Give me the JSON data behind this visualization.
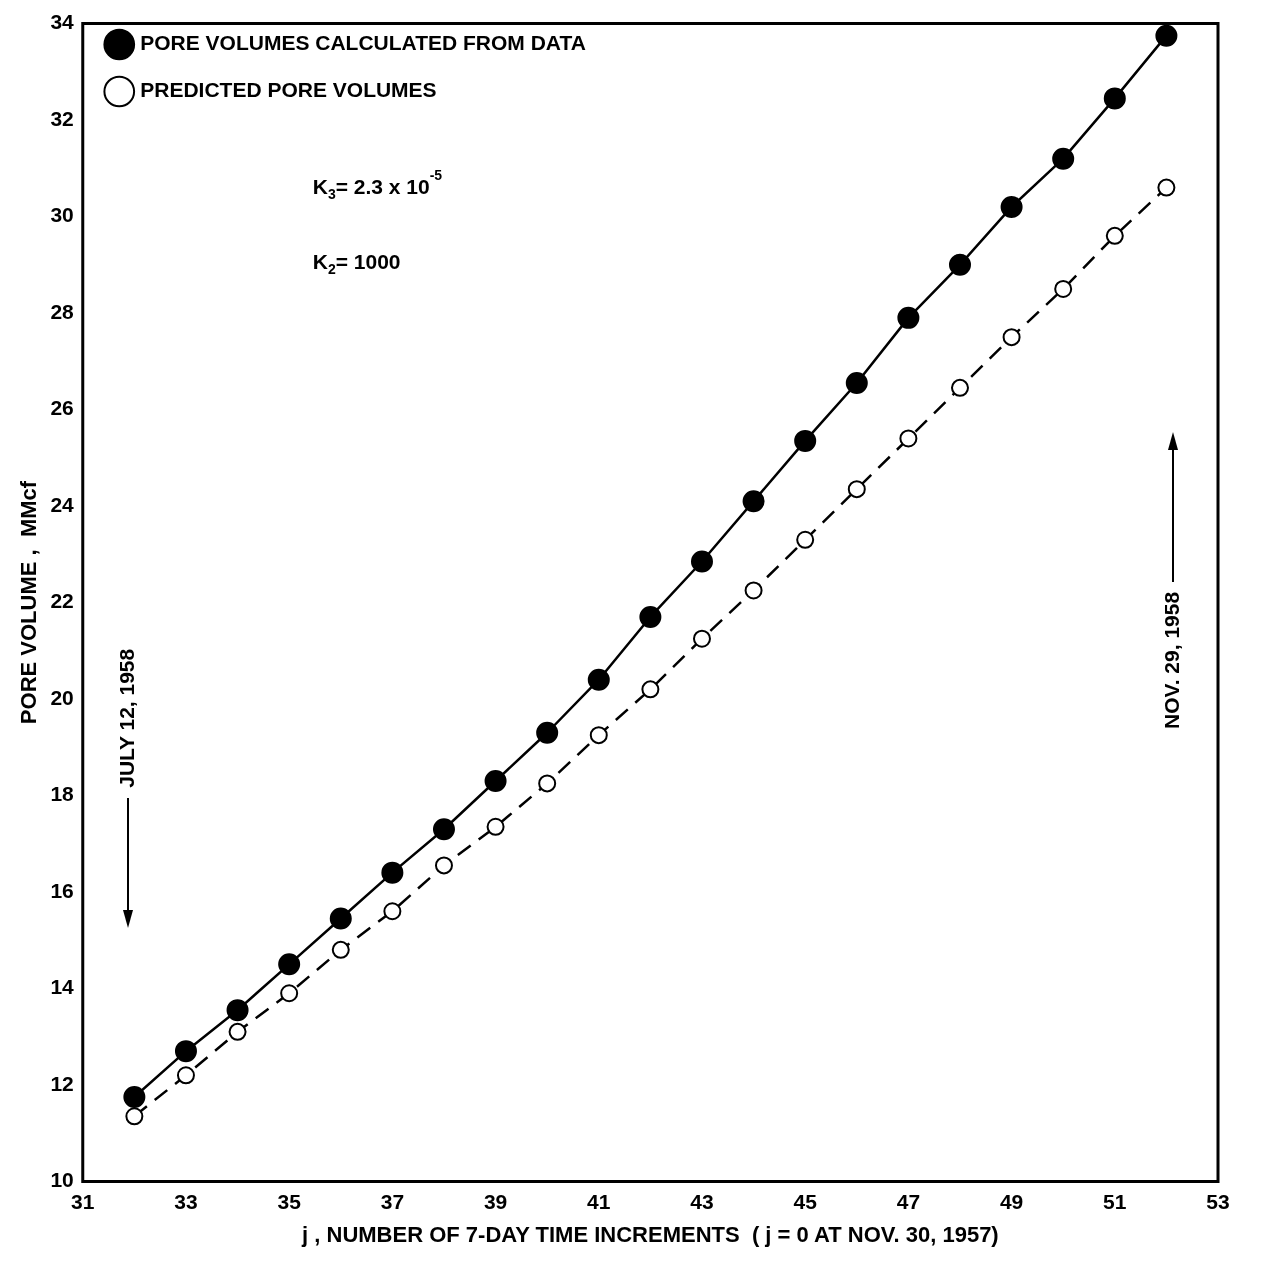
{
  "chart_data": {
    "type": "line",
    "xlabel": "j , NUMBER OF 7-DAY TIME INCREMENTS  ( j = 0 AT NOV. 30, 1957)",
    "ylabel": "PORE VOLUME ,  MMcf",
    "x": [
      32,
      33,
      34,
      35,
      36,
      37,
      38,
      39,
      40,
      41,
      42,
      43,
      44,
      45,
      46,
      47,
      48,
      49,
      50,
      51,
      52
    ],
    "series": [
      {
        "name": "PORE VOLUMES CALCULATED FROM DATA",
        "color": "#000000",
        "marker": "circle",
        "line_style": "solid",
        "values": [
          11.75,
          12.7,
          13.55,
          14.5,
          15.45,
          16.4,
          17.3,
          18.3,
          19.3,
          20.4,
          21.7,
          22.85,
          24.1,
          25.35,
          26.55,
          27.9,
          29.0,
          30.2,
          31.2,
          32.45,
          33.75
        ]
      },
      {
        "name": "PREDICTED PORE VOLUMES",
        "color": "#000000",
        "marker": "circle",
        "line_style": "dashed",
        "values": [
          11.35,
          12.2,
          13.1,
          13.9,
          14.8,
          15.6,
          16.55,
          17.35,
          18.25,
          19.25,
          20.2,
          21.25,
          22.25,
          23.3,
          24.35,
          25.4,
          26.45,
          27.5,
          28.5,
          29.6,
          30.6
        ]
      }
    ],
    "xlim": [
      31,
      53
    ],
    "xticks": [
      31,
      33,
      35,
      37,
      39,
      41,
      43,
      45,
      47,
      49,
      51,
      53
    ],
    "ylim": [
      10,
      34
    ],
    "yticks": [
      10,
      12,
      14,
      16,
      18,
      20,
      22,
      24,
      26,
      28,
      30,
      32,
      34
    ],
    "grid": false,
    "legend": "top left",
    "annotations": [
      "K$_{3}$= 2.3 x 10$^{-5}$",
      "K$_{2}$= 1000",
      "JULY 12, 1958",
      "NOV. 29, 1958"
    ]
  }
}
